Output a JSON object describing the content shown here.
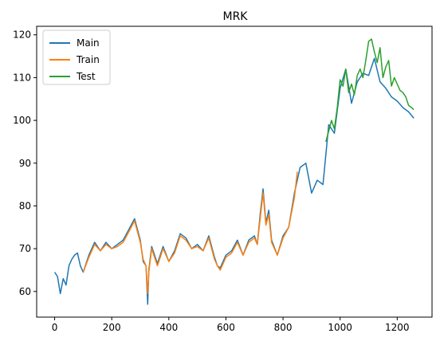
{
  "chart_data": {
    "type": "line",
    "title": "MRK",
    "xlabel": "",
    "ylabel": "",
    "xlim": [
      -63,
      1322
    ],
    "ylim": [
      54,
      122
    ],
    "xticks": [
      0,
      200,
      400,
      600,
      800,
      1000,
      1200
    ],
    "yticks": [
      60,
      70,
      80,
      90,
      100,
      110,
      120
    ],
    "grid": false,
    "legend_position": "top-left",
    "series": [
      {
        "name": "Main",
        "color": "#1f77b4",
        "x": [
          0,
          10,
          20,
          30,
          40,
          50,
          60,
          70,
          80,
          90,
          100,
          120,
          140,
          160,
          180,
          200,
          220,
          240,
          260,
          280,
          300,
          310,
          320,
          326,
          330,
          340,
          360,
          380,
          400,
          420,
          440,
          460,
          480,
          500,
          520,
          540,
          560,
          570,
          580,
          600,
          620,
          640,
          660,
          680,
          700,
          710,
          720,
          730,
          740,
          750,
          760,
          780,
          800,
          820,
          840,
          860,
          880,
          900,
          920,
          940,
          960,
          980,
          1000,
          1020,
          1040,
          1060,
          1080,
          1100,
          1120,
          1140,
          1160,
          1180,
          1200,
          1220,
          1240,
          1258
        ],
        "values": [
          64.5,
          63.5,
          59.5,
          63.0,
          61.5,
          66.0,
          67.5,
          68.5,
          69.0,
          66.0,
          64.5,
          68.5,
          71.5,
          69.5,
          71.5,
          70.0,
          71.0,
          72.0,
          74.5,
          77.0,
          72.0,
          67.0,
          66.0,
          57.0,
          65.0,
          70.5,
          66.5,
          70.5,
          67.0,
          69.5,
          73.5,
          72.5,
          70.0,
          71.0,
          69.5,
          73.0,
          68.0,
          66.0,
          65.5,
          68.5,
          69.5,
          72.0,
          68.5,
          72.0,
          73.0,
          71.0,
          78.0,
          84.0,
          76.0,
          79.0,
          72.0,
          68.5,
          73.0,
          75.0,
          83.0,
          89.0,
          90.0,
          83.0,
          86.0,
          85.0,
          99.0,
          97.0,
          107.5,
          112.0,
          104.0,
          109.0,
          111.0,
          110.5,
          114.5,
          109.0,
          107.5,
          105.5,
          104.5,
          103.0,
          102.0,
          100.5
        ]
      },
      {
        "name": "Train",
        "color": "#ff7f0e",
        "x": [
          100,
          120,
          140,
          160,
          180,
          200,
          220,
          240,
          260,
          280,
          300,
          310,
          320,
          326,
          330,
          340,
          360,
          380,
          400,
          420,
          440,
          460,
          480,
          500,
          520,
          540,
          560,
          570,
          580,
          600,
          620,
          640,
          660,
          680,
          700,
          710,
          720,
          730,
          740,
          750,
          760,
          780,
          800,
          820,
          840,
          850
        ],
        "values": [
          64.5,
          68.0,
          71.0,
          69.5,
          71.0,
          70.0,
          70.5,
          71.5,
          74.0,
          76.5,
          71.5,
          67.5,
          66.0,
          59.5,
          64.5,
          70.0,
          66.0,
          70.0,
          67.0,
          69.0,
          73.0,
          72.0,
          70.0,
          70.5,
          69.5,
          72.5,
          67.5,
          66.0,
          65.0,
          68.0,
          69.0,
          71.5,
          68.5,
          71.5,
          72.5,
          71.0,
          77.0,
          83.0,
          75.5,
          78.0,
          71.5,
          68.5,
          72.5,
          75.0,
          82.0,
          88.0
        ]
      },
      {
        "name": "Test",
        "color": "#2ca02c",
        "x": [
          950,
          960,
          970,
          980,
          990,
          1000,
          1010,
          1020,
          1030,
          1040,
          1050,
          1060,
          1070,
          1080,
          1090,
          1100,
          1110,
          1120,
          1130,
          1140,
          1150,
          1160,
          1170,
          1180,
          1190,
          1200,
          1210,
          1220,
          1230,
          1240,
          1250,
          1258
        ],
        "values": [
          95.0,
          97.5,
          100.0,
          98.0,
          103.0,
          109.5,
          108.0,
          112.0,
          106.5,
          108.5,
          106.0,
          110.5,
          112.0,
          110.0,
          114.0,
          118.5,
          119.0,
          116.0,
          113.5,
          117.0,
          110.0,
          112.5,
          114.0,
          108.0,
          110.0,
          108.5,
          107.0,
          106.5,
          105.5,
          103.5,
          103.0,
          102.5
        ]
      }
    ]
  }
}
